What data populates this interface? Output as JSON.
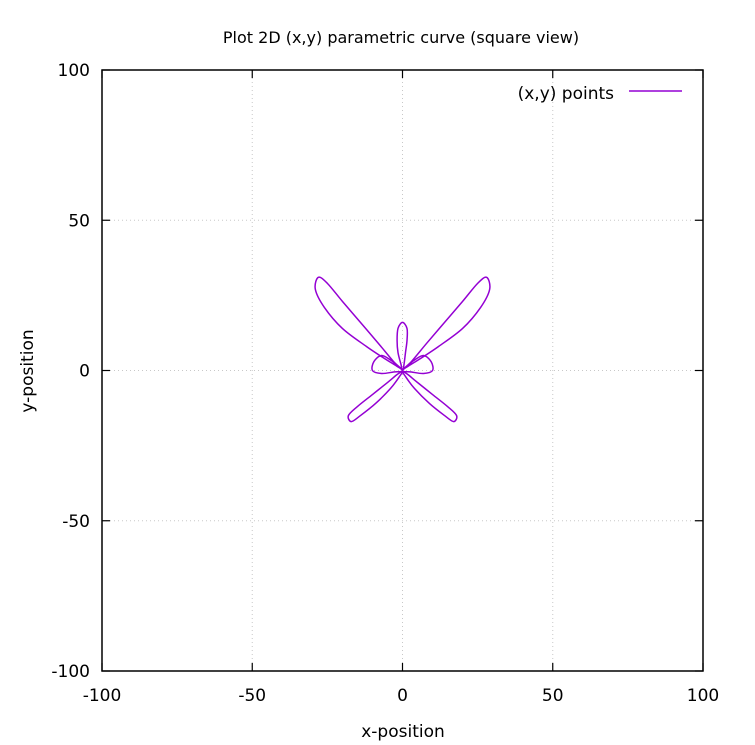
{
  "chart_data": {
    "type": "line",
    "title": "Plot 2D (x,y) parametric curve (square view)",
    "xlabel": "x-position",
    "ylabel": "y-position",
    "xlim": [
      -100,
      100
    ],
    "ylim": [
      -100,
      100
    ],
    "xticks": [
      -100,
      -50,
      0,
      50,
      100
    ],
    "yticks": [
      -100,
      -50,
      0,
      50,
      100
    ],
    "xtick_labels": [
      "-100",
      "-50",
      "0",
      "50",
      "100"
    ],
    "ytick_labels": [
      "-100",
      "-50",
      "0",
      "50",
      "100"
    ],
    "grid": true,
    "legend_position": "top-right",
    "series": [
      {
        "name": "(x,y) points",
        "color": "#9400d3",
        "points": [
          [
            0,
            0
          ],
          [
            1.5,
            1.5
          ],
          [
            4,
            3.5
          ],
          [
            7,
            5
          ],
          [
            9.5,
            3
          ],
          [
            10,
            0
          ],
          [
            7,
            -1
          ],
          [
            3,
            -0.5
          ],
          [
            0,
            0
          ],
          [
            3,
            3
          ],
          [
            8,
            9
          ],
          [
            14,
            16
          ],
          [
            20,
            23
          ],
          [
            25,
            29
          ],
          [
            28,
            31
          ],
          [
            29,
            27
          ],
          [
            26,
            21
          ],
          [
            20,
            14
          ],
          [
            12,
            8
          ],
          [
            6,
            4
          ],
          [
            2,
            1.5
          ],
          [
            0,
            0
          ],
          [
            1,
            -2
          ],
          [
            4,
            -6
          ],
          [
            9,
            -11
          ],
          [
            14,
            -15
          ],
          [
            17,
            -17
          ],
          [
            18,
            -15
          ],
          [
            15,
            -12
          ],
          [
            10,
            -8
          ],
          [
            5,
            -4
          ],
          [
            2,
            -1.5
          ],
          [
            0,
            0
          ],
          [
            -0.5,
            2
          ],
          [
            -1.5,
            6
          ],
          [
            -1.8,
            10
          ],
          [
            -1.5,
            14
          ],
          [
            0,
            16
          ],
          [
            1.5,
            14
          ],
          [
            1.5,
            10
          ],
          [
            1,
            6
          ],
          [
            0.5,
            2
          ],
          [
            0,
            0
          ],
          [
            -2,
            -1.5
          ],
          [
            -5,
            -4
          ],
          [
            -10,
            -8
          ],
          [
            -15,
            -12
          ],
          [
            -18,
            -15
          ],
          [
            -17,
            -17
          ],
          [
            -14,
            -15
          ],
          [
            -9,
            -11
          ],
          [
            -4,
            -6
          ],
          [
            -1,
            -2
          ],
          [
            0,
            0
          ],
          [
            -2,
            1.5
          ],
          [
            -6,
            4
          ],
          [
            -12,
            8
          ],
          [
            -20,
            14
          ],
          [
            -26,
            21
          ],
          [
            -29,
            27
          ],
          [
            -28,
            31
          ],
          [
            -25,
            29
          ],
          [
            -20,
            23
          ],
          [
            -14,
            16
          ],
          [
            -8,
            9
          ],
          [
            -3,
            3
          ],
          [
            0,
            0
          ],
          [
            -3,
            -0.5
          ],
          [
            -7,
            -1
          ],
          [
            -10,
            0
          ],
          [
            -9.5,
            3
          ],
          [
            -7,
            5
          ],
          [
            -4,
            3.5
          ],
          [
            -1.5,
            1.5
          ],
          [
            0,
            0
          ]
        ]
      }
    ]
  }
}
